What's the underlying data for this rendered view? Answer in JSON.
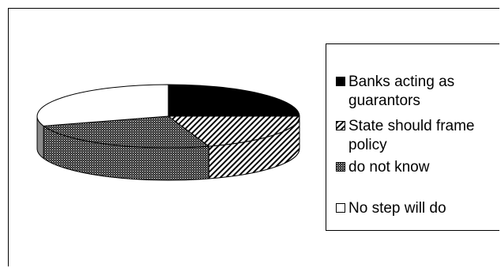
{
  "chart_data": {
    "type": "pie",
    "title": "",
    "categories": [
      "Banks acting as guarantors",
      "State should frame policy",
      "do not know",
      "No step will do"
    ],
    "values": [
      25,
      20,
      25,
      30
    ],
    "colors": {
      "Banks acting as guarantors": "#000000",
      "State should frame policy": "#ffffff",
      "do not know": "#555555",
      "No step will do": "#ffffff",
      "side_of_no_step_will_do": "#8a8a8a"
    },
    "fill_patterns": [
      "solid-black",
      "diagonal-hatch",
      "dense-dots",
      "white"
    ],
    "legend_position": "right",
    "three_d": true
  },
  "legend": {
    "items": [
      {
        "label": "Banks acting as guarantors",
        "icon": "black-square"
      },
      {
        "label": "State should frame policy",
        "icon": "hatched-square"
      },
      {
        "label": "do not know",
        "icon": "dotted-square"
      },
      {
        "label": "No step will do",
        "icon": "white-square"
      }
    ]
  }
}
